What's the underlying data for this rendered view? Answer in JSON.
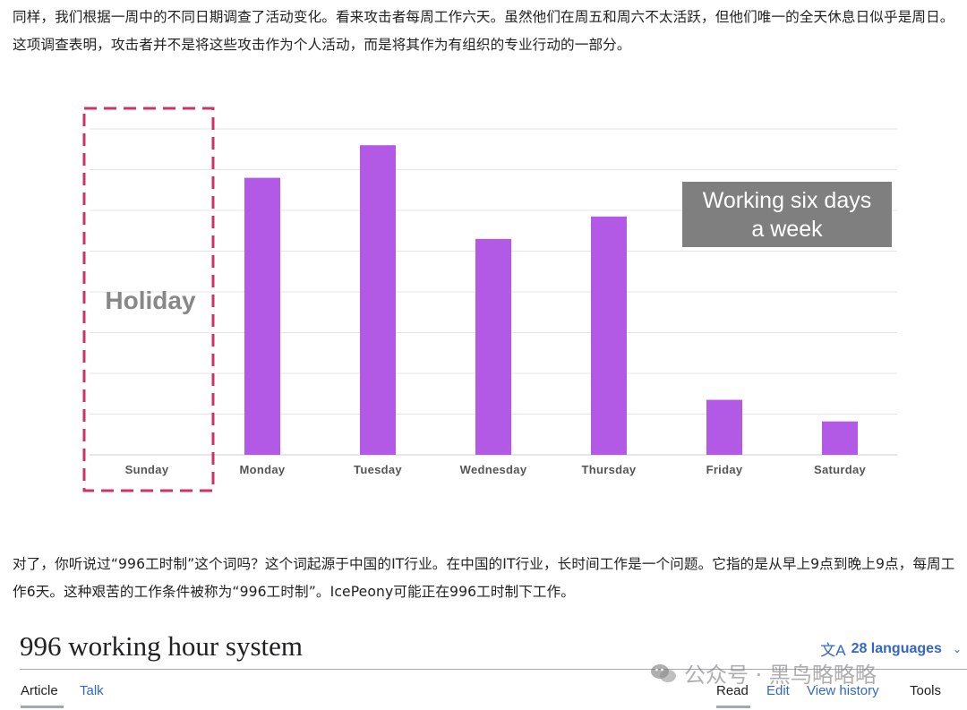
{
  "paragraphs": {
    "p1": "同样，我们根据一周中的不同日期调查了活动变化。看来攻击者每周工作六天。虽然他们在周五和周六不太活跃，但他们唯一的全天休息日似乎是周日。这项调查表明，攻击者并不是将这些攻击作为个人活动，而是将其作为有组织的专业行动的一部分。",
    "p2": "对了，你听说过“996工时制”这个词吗？这个词起源于中国的IT行业。在中国的IT行业，长时间工作是一个问题。它指的是从早上9点到晚上9点，每周工作6天。这种艰苦的工作条件被称为“996工时制”。IcePeony可能正在996工时制下工作。"
  },
  "chart_data": {
    "type": "bar",
    "title": "",
    "xlabel": "",
    "ylabel": "",
    "categories": [
      "Sunday",
      "Monday",
      "Tuesday",
      "Wednesday",
      "Thursday",
      "Friday",
      "Saturday"
    ],
    "values": [
      0,
      6.8,
      7.6,
      5.3,
      5.85,
      1.35,
      0.82
    ],
    "ylim": [
      0,
      8
    ],
    "grid": true,
    "bar_color": "#b259e6",
    "annotations": {
      "holiday": "Holiday",
      "working_line1": "Working six days",
      "working_line2": "a week"
    },
    "highlight_color": "#cc3366",
    "annotation_box_color": "#7f7f7f"
  },
  "wiki": {
    "title": "996 working hour system",
    "languages": "28 languages",
    "language_icon": "translate-icon",
    "tabs": {
      "article": "Article",
      "talk": "Talk",
      "read": "Read",
      "edit": "Edit",
      "history": "View history",
      "tools": "Tools"
    }
  },
  "watermark": {
    "text": "公众号 · 黑鸟略略略",
    "icon": "wechat-icon"
  }
}
